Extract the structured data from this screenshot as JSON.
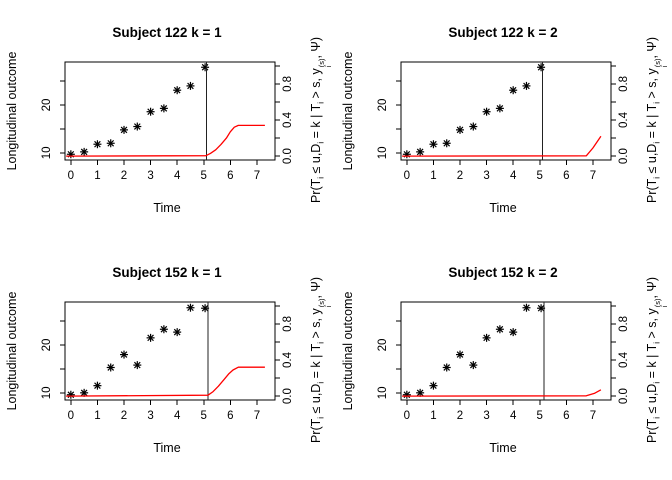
{
  "figure": {
    "background": "#ffffff",
    "text_color": "#000000"
  },
  "chart_data": {
    "type": "scatter",
    "layout": {
      "rows": 2,
      "cols": 2,
      "grid": false,
      "legend": "none"
    },
    "shared": {
      "xlabel": "Time",
      "ylabel_left": "Longitudinal outcome",
      "ylabel_right_segments": [
        {
          "type": "text",
          "value": "Pr(T"
        },
        {
          "type": "sub",
          "value": "i"
        },
        {
          "type": "text",
          "value": " ≤ u,D"
        },
        {
          "type": "sub",
          "value": "i"
        },
        {
          "type": "text",
          "value": " = k | T"
        },
        {
          "type": "sub",
          "value": "i"
        },
        {
          "type": "text",
          "value": " > s, y"
        },
        {
          "type": "supsub",
          "sup": "(s)",
          "sub": "i"
        },
        {
          "type": "text",
          "value": ", Ψ)"
        }
      ],
      "xlim": [
        -0.22,
        7.68
      ],
      "xticks": [
        0,
        1,
        2,
        3,
        4,
        5,
        6,
        7
      ],
      "xtick_labels": [
        "0",
        "1",
        "2",
        "3",
        "4",
        "5",
        "6",
        "7"
      ],
      "ylim_left": [
        8.5,
        29.0
      ],
      "yticks_left": [
        10,
        15,
        20,
        25
      ],
      "ytick_labels_left": [
        "10",
        "",
        "20",
        ""
      ],
      "ylim_right": [
        -0.043,
        1.043
      ],
      "yticks_right": [
        0.0,
        0.2,
        0.4,
        0.6,
        0.8,
        1.0
      ],
      "ytick_labels_right": [
        "0.0",
        "",
        "0.4",
        "",
        "0.8",
        ""
      ],
      "marker": "asterisk-pch8",
      "marker_color": "#000000",
      "prob_color": "#ff0000",
      "vline_color": "#222222",
      "axis_color": "#000000"
    },
    "panels": [
      {
        "title": "Subject 122 k = 1",
        "points_x": [
          0,
          0.5,
          1,
          1.5,
          2,
          2.5,
          3,
          3.5,
          4,
          4.5,
          5.05
        ],
        "points_y": [
          9.7,
          10.2,
          11.8,
          12.0,
          14.8,
          15.5,
          18.6,
          19.3,
          23.1,
          24.0,
          27.9
        ],
        "vline_x": 5.1,
        "prob_x": [
          -0.18,
          5.08,
          5.25,
          5.45,
          5.65,
          5.85,
          6.0,
          6.15,
          6.3,
          7.3
        ],
        "prob_y": [
          0,
          0.005,
          0.03,
          0.07,
          0.13,
          0.2,
          0.27,
          0.32,
          0.34,
          0.34
        ]
      },
      {
        "title": "Subject 122 k = 2",
        "points_x": [
          0,
          0.5,
          1,
          1.5,
          2,
          2.5,
          3,
          3.5,
          4,
          4.5,
          5.05
        ],
        "points_y": [
          9.7,
          10.2,
          11.8,
          12.0,
          14.8,
          15.5,
          18.6,
          19.3,
          23.1,
          24.0,
          27.9
        ],
        "vline_x": 5.1,
        "prob_x": [
          -0.18,
          6.75,
          7.0,
          7.3
        ],
        "prob_y": [
          0,
          0.004,
          0.09,
          0.22
        ]
      },
      {
        "title": "Subject 152 k = 1",
        "points_x": [
          0,
          0.5,
          1,
          1.5,
          2,
          2.5,
          3,
          3.5,
          4,
          4.5,
          5.05
        ],
        "points_y": [
          9.6,
          10.0,
          11.5,
          15.3,
          18.0,
          15.8,
          21.5,
          23.3,
          22.7,
          27.8,
          27.7
        ],
        "vline_x": 5.16,
        "prob_x": [
          -0.18,
          5.16,
          5.35,
          5.55,
          5.75,
          5.95,
          6.1,
          6.3,
          7.3
        ],
        "prob_y": [
          0,
          0.01,
          0.05,
          0.11,
          0.18,
          0.25,
          0.29,
          0.32,
          0.32
        ]
      },
      {
        "title": "Subject 152 k = 2",
        "points_x": [
          0,
          0.5,
          1,
          1.5,
          2,
          2.5,
          3,
          3.5,
          4,
          4.5,
          5.05
        ],
        "points_y": [
          9.6,
          10.0,
          11.5,
          15.3,
          18.0,
          15.8,
          21.5,
          23.3,
          22.7,
          27.8,
          27.7
        ],
        "vline_x": 5.16,
        "prob_x": [
          -0.18,
          6.75,
          7.05,
          7.3
        ],
        "prob_y": [
          0,
          0.004,
          0.03,
          0.07
        ]
      }
    ]
  }
}
